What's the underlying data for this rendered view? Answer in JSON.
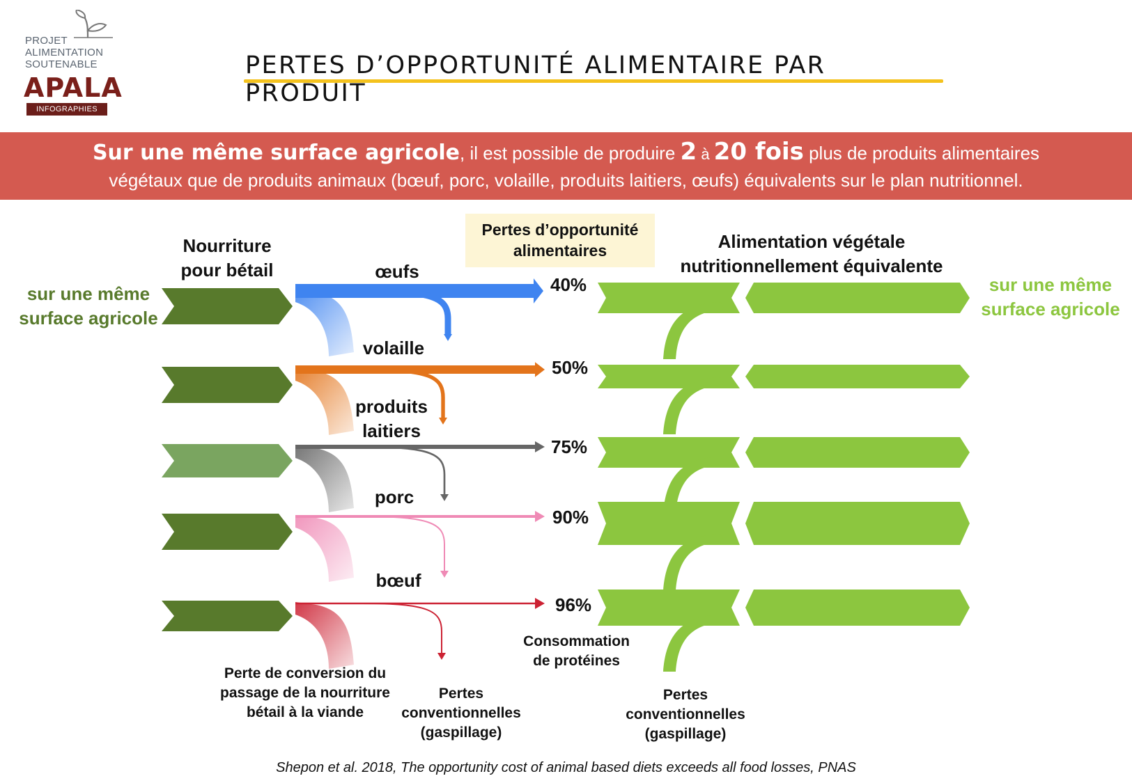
{
  "logo": {
    "line1": "PROJET",
    "line2": "ALIMENTATION",
    "line3": "SOUTENABLE",
    "brand": "APALA",
    "badge": "INFOGRAPHIES",
    "icon": "sprout-icon"
  },
  "title": "PERTES D’OPPORTUNITÉ ALIMENTAIRE PAR PRODUIT",
  "banner": {
    "bold": "Sur une même surface agricole",
    "mid1": ", il est possible de produire ",
    "num1": "2",
    "mid2": " à ",
    "num2": "20 fois",
    "mid3": " plus de produits alimentaires",
    "line2": "végétaux que de produits animaux (bœuf, porc, volaille, produits laitiers, œufs) équivalents sur le plan nutritionnel."
  },
  "headers": {
    "feed_l1": "Nourriture",
    "feed_l2": "pour bétail",
    "losses_l1": "Pertes d’opportunité",
    "losses_l2": "alimentaires",
    "plant_l1": "Alimentation végétale",
    "plant_l2": "nutritionnellement équivalente"
  },
  "sides": {
    "left_l1": "sur une même",
    "left_l2": "surface agricole",
    "right_l1": "sur une même",
    "right_l2": "surface agricole"
  },
  "products": [
    {
      "name_l1": "œufs",
      "name_l2": "",
      "loss": "40%",
      "color": "#3f84f0"
    },
    {
      "name_l1": "volaille",
      "name_l2": "",
      "loss": "50%",
      "color": "#e3741b"
    },
    {
      "name_l1": "produits",
      "name_l2": "laitiers",
      "loss": "75%",
      "color": "#666666"
    },
    {
      "name_l1": "porc",
      "name_l2": "",
      "loss": "90%",
      "color": "#ef8ab5"
    },
    {
      "name_l1": "bœuf",
      "name_l2": "",
      "loss": "96%",
      "color": "#cc2233"
    }
  ],
  "colors": {
    "feed_dark": "#587a2c",
    "feed_light": "#7aa560",
    "plant": "#8cc63f",
    "banner": "#d45a50",
    "underline": "#f4c21d"
  },
  "bottom": {
    "conv_l1": "Perte de conversion du",
    "conv_l2": "passage de la nourriture",
    "conv_l3": "bétail à la viande",
    "waste1_l1": "Pertes",
    "waste1_l2": "conventionnelles",
    "waste1_l3": "(gaspillage)",
    "protein_l1": "Consommation",
    "protein_l2": "de protéines",
    "waste2_l1": "Pertes",
    "waste2_l2": "conventionnelles",
    "waste2_l3": "(gaspillage)"
  },
  "citation": "Shepon et al. 2018, The opportunity cost of animal based diets exceeds all food losses, PNAS"
}
